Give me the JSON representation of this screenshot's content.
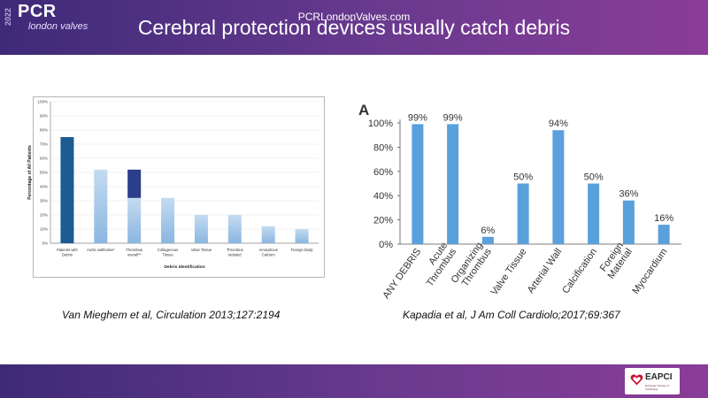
{
  "slide": {
    "title": "Cerebral protection devices usually catch debris",
    "citation_left": "Van Mieghem et al, Circulation 2013;127:2194",
    "citation_right": "Kapadia et al, J Am Coll Cardiolo;2017;69:367"
  },
  "footer": {
    "year": "2022",
    "brand": "PCR",
    "brand_sub": "london valves",
    "url": "PCRLondonValves.com",
    "partner_logo": "EAPCI",
    "partner_sub": "European Society of Cardiology"
  },
  "colors": {
    "left_dark": "#1d5b92",
    "left_light": "#8ab6e0",
    "left_thrombus_top": "#2a3e8c",
    "right_bar": "#5aa0dc"
  },
  "chart_data": [
    {
      "type": "bar",
      "title": "",
      "xlabel": "Debris Identification",
      "ylabel": "Percentage of All Patients",
      "ylim": [
        0,
        100
      ],
      "yticks": [
        "0%",
        "10%",
        "20%",
        "30%",
        "40%",
        "50%",
        "60%",
        "70%",
        "80%",
        "90%",
        "100%"
      ],
      "categories": [
        [
          "Patients with",
          "Debris"
        ],
        [
          "Aortic wall/valve*"
        ],
        [
          "Thrombus",
          "overall**"
        ],
        [
          "Collagenous",
          "Tissue"
        ],
        [
          "Valve Tissue"
        ],
        [
          "Thrombus",
          "Isolated"
        ],
        [
          "Amorphous",
          "Calcium"
        ],
        [
          "Foreign Body"
        ]
      ],
      "series": [
        {
          "name": "base",
          "values": [
            75,
            52,
            32,
            32,
            20,
            20,
            12,
            10
          ]
        },
        {
          "name": "thrombus-stacked",
          "values": [
            0,
            0,
            20,
            0,
            0,
            0,
            0,
            0
          ]
        }
      ],
      "grid": true
    },
    {
      "type": "bar",
      "panel_label": "A",
      "title": "",
      "xlabel": "",
      "ylabel": "",
      "ylim": [
        0,
        100
      ],
      "yticks": [
        "0%",
        "20%",
        "40%",
        "60%",
        "80%",
        "100%"
      ],
      "categories": [
        [
          "ANY DEBRIS"
        ],
        [
          "Acute",
          "Thrombus"
        ],
        [
          "Organizing",
          "Thrombus"
        ],
        [
          "Valve Tissue"
        ],
        [
          "Arterial Wall"
        ],
        [
          "Calcification"
        ],
        [
          "Foreign",
          "Material"
        ],
        [
          "Myocardium"
        ]
      ],
      "values": [
        99,
        99,
        6,
        50,
        94,
        50,
        36,
        16
      ],
      "labels": [
        "99%",
        "99%",
        "6%",
        "50%",
        "94%",
        "50%",
        "36%",
        "16%"
      ],
      "grid": false
    }
  ]
}
